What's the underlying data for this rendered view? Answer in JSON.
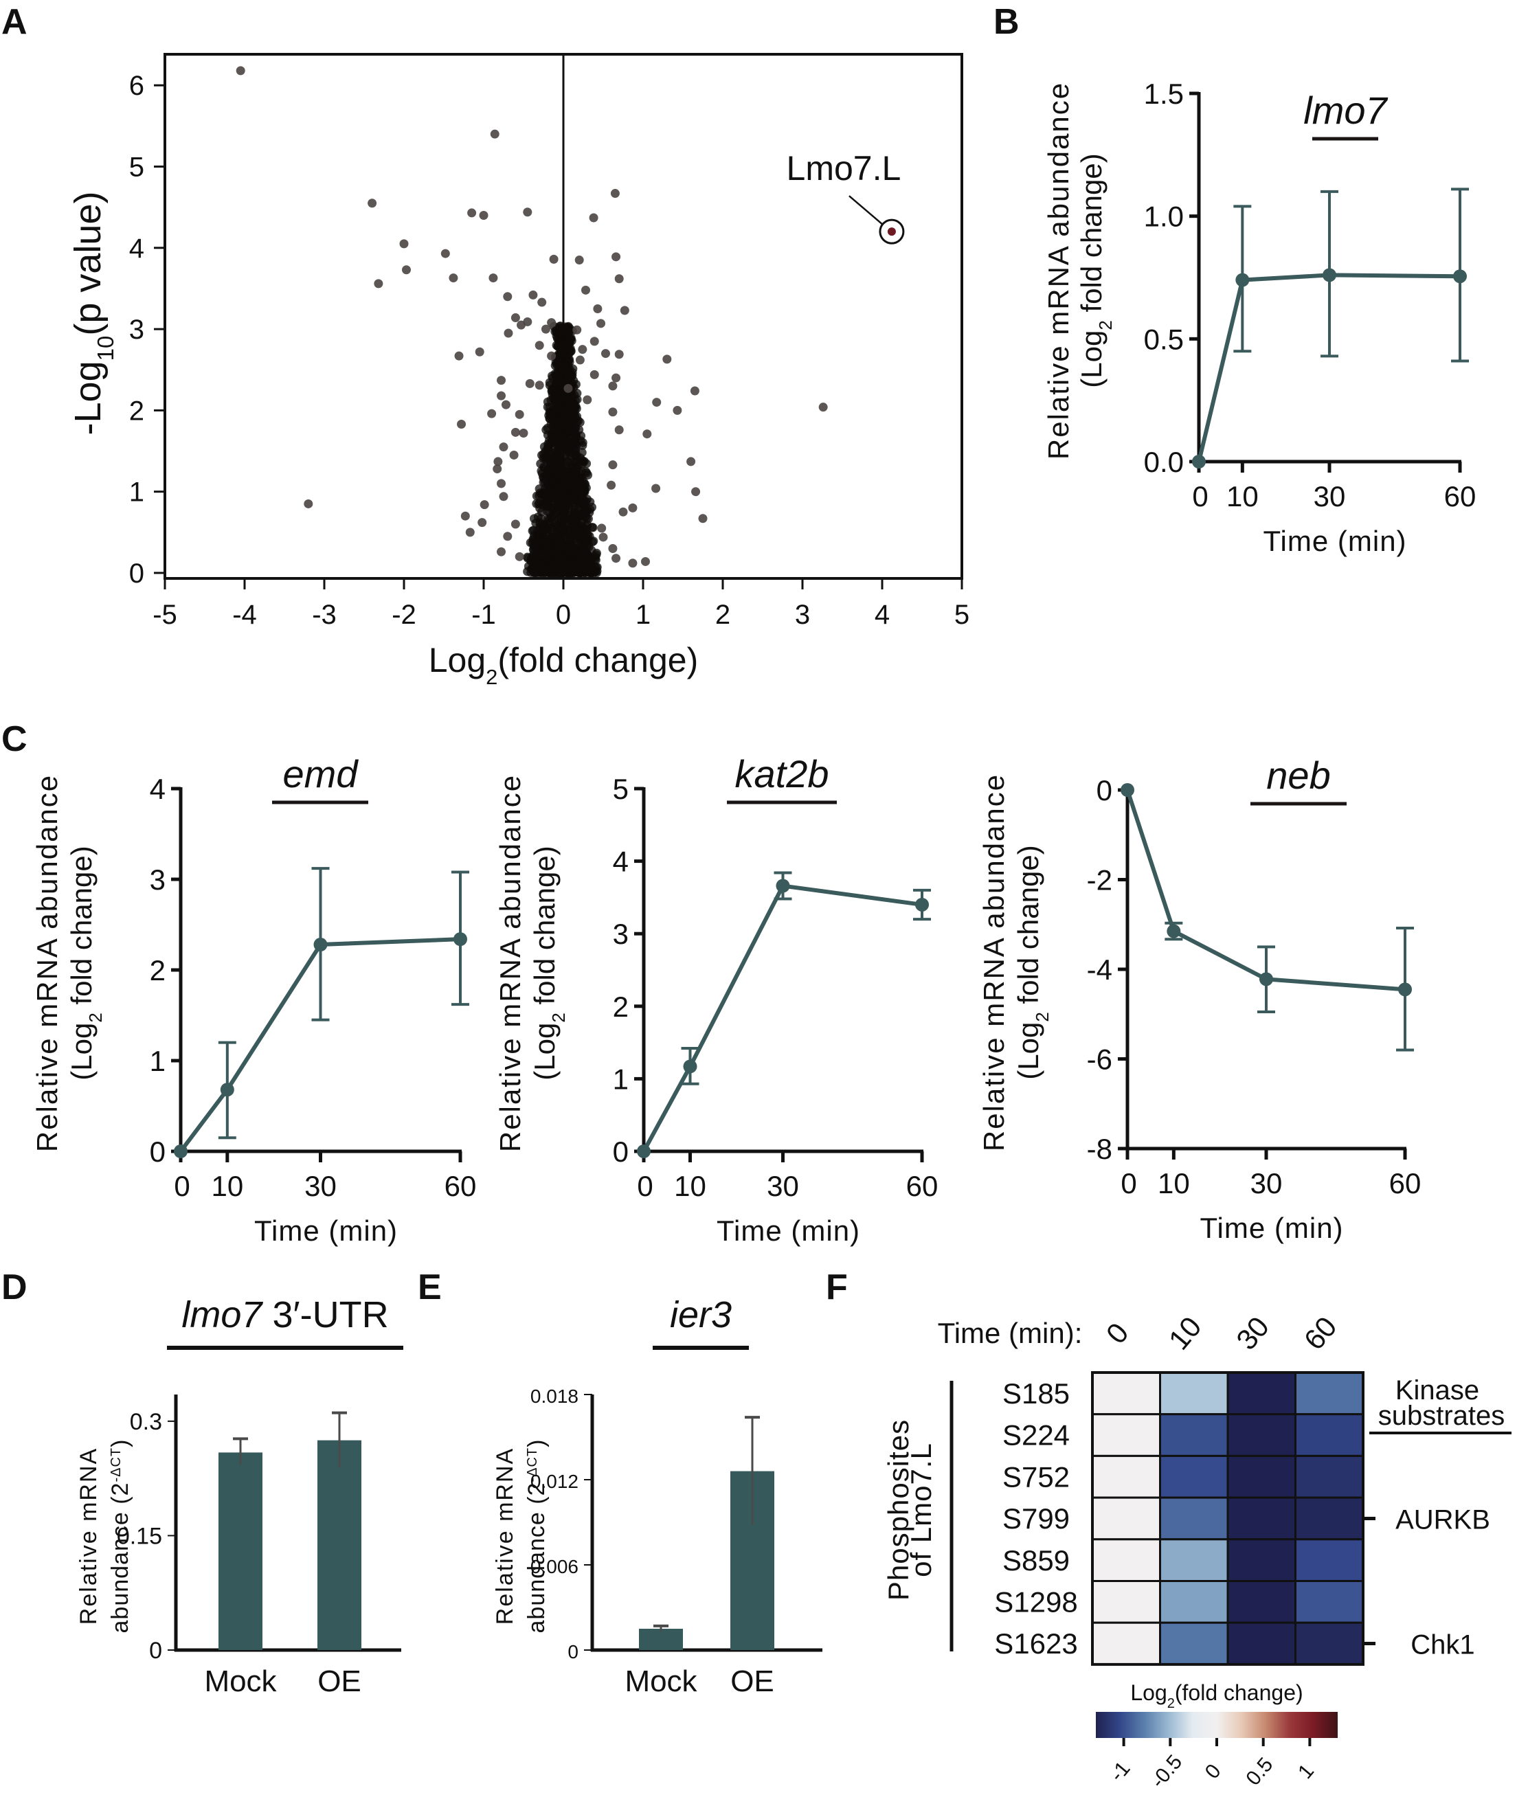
{
  "panels": {
    "A": "A",
    "B": "B",
    "C": "C",
    "D": "D",
    "E": "E",
    "F": "F"
  },
  "colors": {
    "series": "#3a5a5c",
    "bar": "#365a5c",
    "point_gray": "#4a4442",
    "point_core": "#0d0b08",
    "highlight": "#6e1a22",
    "axis": "#111111"
  },
  "chart_data": [
    {
      "id": "A",
      "type": "scatter",
      "title": "",
      "xlabel": "Log2(fold change)",
      "ylabel": "-Log10(p value)",
      "xlim": [
        -5,
        5
      ],
      "ylim": [
        -0.1,
        6.4
      ],
      "xticks": [
        -5,
        -4,
        -3,
        -2,
        -1,
        0,
        1,
        2,
        3,
        4,
        5
      ],
      "yticks": [
        0,
        1,
        2,
        3,
        4,
        5,
        6
      ],
      "vline_at": 0,
      "annotation": {
        "label": "Lmo7.L",
        "x": 4.12,
        "y": 4.2
      },
      "points": [
        [
          -4.05,
          6.18
        ],
        [
          -0.86,
          5.4
        ],
        [
          -2.4,
          4.55
        ],
        [
          -1.15,
          4.43
        ],
        [
          -1.0,
          4.4
        ],
        [
          -0.45,
          4.44
        ],
        [
          0.65,
          4.67
        ],
        [
          0.38,
          4.37
        ],
        [
          -2.0,
          4.05
        ],
        [
          -1.48,
          3.93
        ],
        [
          -1.97,
          3.73
        ],
        [
          -2.32,
          3.56
        ],
        [
          -1.38,
          3.63
        ],
        [
          -0.88,
          3.63
        ],
        [
          -0.12,
          3.86
        ],
        [
          0.2,
          3.85
        ],
        [
          0.66,
          3.89
        ],
        [
          0.7,
          3.62
        ],
        [
          -0.7,
          3.4
        ],
        [
          -0.38,
          3.42
        ],
        [
          -0.27,
          3.33
        ],
        [
          0.28,
          3.48
        ],
        [
          0.43,
          3.25
        ],
        [
          0.77,
          3.23
        ],
        [
          -0.6,
          3.14
        ],
        [
          -0.53,
          3.05
        ],
        [
          -0.45,
          3.09
        ],
        [
          -0.22,
          3.0
        ],
        [
          -0.15,
          3.08
        ],
        [
          0.47,
          3.07
        ],
        [
          0.17,
          2.99
        ],
        [
          -0.69,
          2.95
        ],
        [
          -0.3,
          2.8
        ],
        [
          0.39,
          2.85
        ],
        [
          0.24,
          2.75
        ],
        [
          -1.31,
          2.67
        ],
        [
          -1.05,
          2.72
        ],
        [
          -0.15,
          2.67
        ],
        [
          0.21,
          2.62
        ],
        [
          0.53,
          2.7
        ],
        [
          0.7,
          2.69
        ],
        [
          1.3,
          2.63
        ],
        [
          -0.78,
          2.37
        ],
        [
          -0.42,
          2.33
        ],
        [
          -0.3,
          2.31
        ],
        [
          0.39,
          2.44
        ],
        [
          0.62,
          2.3
        ],
        [
          0.66,
          2.4
        ],
        [
          -0.78,
          2.18
        ],
        [
          -0.72,
          2.07
        ],
        [
          -0.55,
          1.95
        ],
        [
          -0.9,
          1.96
        ],
        [
          -0.5,
          1.72
        ],
        [
          0.06,
          2.27
        ],
        [
          0.3,
          2.13
        ],
        [
          0.62,
          1.98
        ],
        [
          0.7,
          1.76
        ],
        [
          1.17,
          2.1
        ],
        [
          1.43,
          2.0
        ],
        [
          1.65,
          2.24
        ],
        [
          1.05,
          1.71
        ],
        [
          3.26,
          2.04
        ],
        [
          -1.28,
          1.83
        ],
        [
          -0.6,
          1.73
        ],
        [
          -0.75,
          1.55
        ],
        [
          -0.62,
          1.45
        ],
        [
          -0.82,
          1.37
        ],
        [
          -0.83,
          1.28
        ],
        [
          -0.78,
          1.1
        ],
        [
          -0.75,
          0.94
        ],
        [
          0.62,
          1.33
        ],
        [
          0.6,
          1.08
        ],
        [
          1.6,
          1.37
        ],
        [
          1.16,
          1.04
        ],
        [
          1.66,
          1.0
        ],
        [
          1.75,
          0.67
        ],
        [
          0.87,
          0.8
        ],
        [
          0.75,
          0.75
        ],
        [
          -0.99,
          0.84
        ],
        [
          -1.23,
          0.7
        ],
        [
          -1.02,
          0.62
        ],
        [
          -1.17,
          0.5
        ],
        [
          -3.2,
          0.85
        ],
        [
          -0.7,
          0.45
        ],
        [
          -0.78,
          0.26
        ],
        [
          0.48,
          0.55
        ],
        [
          0.5,
          0.44
        ],
        [
          0.62,
          0.3
        ],
        [
          0.66,
          0.18
        ],
        [
          0.87,
          0.12
        ],
        [
          1.03,
          0.14
        ],
        [
          -0.55,
          0.2
        ],
        [
          -0.6,
          0.6
        ]
      ],
      "core_cluster": {
        "x_range": [
          -0.45,
          0.4
        ],
        "y_range": [
          0,
          1.6
        ],
        "count": 1400
      }
    },
    {
      "id": "B",
      "type": "line",
      "gene": "lmo7",
      "xlabel": "Time (min)",
      "ylabel_line1": "Relative mRNA abundance",
      "ylabel_line2": "(Log2 fold change)",
      "x": [
        0,
        10,
        30,
        60
      ],
      "xticks": [
        0,
        10,
        30,
        60
      ],
      "yticks": [
        "0.0",
        "0.5",
        "1.0",
        "1.5"
      ],
      "ytick_values": [
        0,
        0.5,
        1.0,
        1.5
      ],
      "ylim": [
        0,
        1.5
      ],
      "values": [
        0.0,
        0.74,
        0.76,
        0.755
      ],
      "err_low": [
        0.0,
        0.45,
        0.43,
        0.41
      ],
      "err_high": [
        0.0,
        1.04,
        1.1,
        1.11
      ]
    },
    {
      "id": "C1",
      "type": "line",
      "gene": "emd",
      "xlabel": "Time (min)",
      "ylabel_line1": "Relative mRNA abundance",
      "ylabel_line2": "(Log2 fold change)",
      "x": [
        0,
        10,
        30,
        60
      ],
      "xticks": [
        0,
        10,
        30,
        60
      ],
      "yticks": [
        "0",
        "1",
        "2",
        "3",
        "4"
      ],
      "ytick_values": [
        0,
        1,
        2,
        3,
        4
      ],
      "ylim": [
        0,
        4
      ],
      "values": [
        0.0,
        0.68,
        2.28,
        2.34
      ],
      "err_low": [
        0.0,
        0.15,
        1.45,
        1.62
      ],
      "err_high": [
        0.0,
        1.2,
        3.12,
        3.08
      ]
    },
    {
      "id": "C2",
      "type": "line",
      "gene": "kat2b",
      "xlabel": "Time (min)",
      "ylabel_line1": "Relative mRNA abundance",
      "ylabel_line2": "(Log2 fold change)",
      "x": [
        0,
        10,
        30,
        60
      ],
      "xticks": [
        0,
        10,
        30,
        60
      ],
      "yticks": [
        "0",
        "1",
        "2",
        "3",
        "4",
        "5"
      ],
      "ytick_values": [
        0,
        1,
        2,
        3,
        4,
        5
      ],
      "ylim": [
        0,
        5
      ],
      "values": [
        0.0,
        1.17,
        3.66,
        3.4
      ],
      "err_low": [
        0.0,
        0.93,
        3.48,
        3.2
      ],
      "err_high": [
        0.0,
        1.42,
        3.84,
        3.6
      ]
    },
    {
      "id": "C3",
      "type": "line",
      "gene": "neb",
      "xlabel": "Time (min)",
      "ylabel_line1": "Relative mRNA abundance",
      "ylabel_line2": "(Log2 fold change)",
      "x": [
        0,
        10,
        30,
        60
      ],
      "xticks": [
        0,
        10,
        30,
        60
      ],
      "yticks": [
        "0",
        "-2",
        "-4",
        "-6",
        "-8"
      ],
      "ytick_values": [
        0,
        -2,
        -4,
        -6,
        -8
      ],
      "ylim": [
        -8,
        0
      ],
      "values": [
        0.0,
        -3.15,
        -4.22,
        -4.45
      ],
      "err_low": [
        0.0,
        -3.33,
        -4.95,
        -5.8
      ],
      "err_high": [
        0.0,
        -2.97,
        -3.5,
        -3.08
      ]
    },
    {
      "id": "D",
      "type": "bar",
      "gene": "lmo7",
      "title_suffix": " 3′-UTR",
      "ylabel_line1": "Relative mRNA",
      "ylabel_line2": "abundance (2",
      "ylabel_sup": "-ΔCT",
      "ylabel_close": ")",
      "categories": [
        "Mock",
        "OE"
      ],
      "values": [
        0.259,
        0.275
      ],
      "err_low": [
        0.243,
        0.239
      ],
      "err_high": [
        0.277,
        0.311
      ],
      "yticks": [
        "0",
        "0.15",
        "0.3"
      ],
      "ytick_values": [
        0,
        0.15,
        0.3
      ],
      "ylim": [
        0,
        0.335
      ]
    },
    {
      "id": "E",
      "type": "bar",
      "gene": "ier3",
      "title_suffix": "",
      "ylabel_line1": "Relative mRNA",
      "ylabel_line2": "abundance (2",
      "ylabel_sup": "-ΔCT",
      "ylabel_close": ")",
      "categories": [
        "Mock",
        "OE"
      ],
      "values": [
        0.0015,
        0.0126
      ],
      "err_low": [
        0.0013,
        0.0088
      ],
      "err_high": [
        0.0017,
        0.0164
      ],
      "yticks": [
        "0",
        "0.006",
        "0.012",
        "0.018"
      ],
      "ytick_values": [
        0,
        0.006,
        0.012,
        0.018
      ],
      "ylim": [
        0,
        0.018
      ]
    },
    {
      "id": "F",
      "type": "heatmap",
      "time_label": "Time (min):",
      "columns": [
        "0",
        "10",
        "30",
        "60"
      ],
      "rows": [
        "S185",
        "S224",
        "S752",
        "S799",
        "S859",
        "S1298",
        "S1623"
      ],
      "row_group_label_line1": "Phosphosites",
      "row_group_label_line2": "of Lmo7.L",
      "kinase_header_line1": "Kinase",
      "kinase_header_line2": "substrates",
      "kinase_annotations": [
        {
          "row": "S799",
          "kinase": "AURKB"
        },
        {
          "row": "S1623",
          "kinase": "Chk1"
        }
      ],
      "values": [
        [
          0,
          -0.45,
          -1.3,
          -0.85
        ],
        [
          0,
          -1.0,
          -1.3,
          -1.08
        ],
        [
          0,
          -1.02,
          -1.3,
          -1.18
        ],
        [
          0,
          -0.88,
          -1.3,
          -1.26
        ],
        [
          0,
          -0.58,
          -1.3,
          -1.04
        ],
        [
          0,
          -0.62,
          -1.3,
          -0.98
        ],
        [
          0,
          -0.82,
          -1.3,
          -1.25
        ]
      ],
      "colorbar": {
        "title": "Log2(fold change)",
        "ticks": [
          "-1",
          "-0.5",
          "0",
          "0.5",
          "1"
        ],
        "tick_values": [
          -1,
          -0.5,
          0,
          0.5,
          1
        ],
        "range": [
          -1.3,
          1.3
        ],
        "stops": [
          "#1f2250",
          "#33478a",
          "#5a7fac",
          "#9ab8d2",
          "#e4ebf1",
          "#f2f0f0",
          "#e8cbb8",
          "#c78a70",
          "#9a3a3c",
          "#7b1a24",
          "#3e1418"
        ]
      }
    }
  ]
}
